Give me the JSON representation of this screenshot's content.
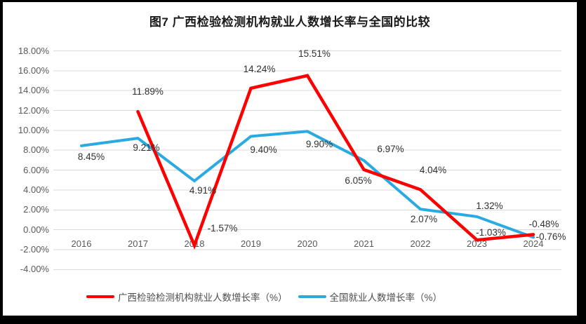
{
  "frame": {
    "border_color": "#000000",
    "background": "#ffffff"
  },
  "chart_data": {
    "type": "line",
    "title": "图7 广西检验检测机构就业人数增长率与全国的比较",
    "categories": [
      "2016",
      "2017",
      "2018",
      "2019",
      "2020",
      "2021",
      "2022",
      "2023",
      "2024"
    ],
    "y_axis": {
      "ticks": [
        "18.00%",
        "16.00%",
        "14.00%",
        "12.00%",
        "10.00%",
        "8.00%",
        "6.00%",
        "4.00%",
        "2.00%",
        "0.00%",
        "-2.00%",
        "-4.00%"
      ],
      "tick_values": [
        18,
        16,
        14,
        12,
        10,
        8,
        6,
        4,
        2,
        0,
        -2,
        -4
      ],
      "min": -4,
      "max": 18
    },
    "grid": true,
    "gridline_color": "#d9d9d9",
    "legend_position": "bottom",
    "series": [
      {
        "id": "guangxi",
        "name": "广西检验检测机构就业人数增长率（%）",
        "color": "#ff0000",
        "stroke_width": 4.5,
        "values": [
          null,
          11.89,
          -1.57,
          14.24,
          15.51,
          6.05,
          4.04,
          -1.03,
          -0.48
        ],
        "labels": [
          null,
          "11.89%",
          "-1.57%",
          "14.24%",
          "15.51%",
          "6.05%",
          "4.04%",
          "-1.03%",
          "-0.48%"
        ],
        "label_offsets": [
          null,
          [
            14,
            -28
          ],
          [
            40,
            -24
          ],
          [
            12,
            -27
          ],
          [
            10,
            -31
          ],
          [
            -8,
            16
          ],
          [
            18,
            -27
          ],
          [
            20,
            -10
          ],
          [
            15,
            -14
          ]
        ]
      },
      {
        "id": "national",
        "name": "全国就业人数增长率（%）",
        "color": "#29abe2",
        "stroke_width": 4,
        "values": [
          8.45,
          9.21,
          4.91,
          9.4,
          9.9,
          6.97,
          2.07,
          1.32,
          -0.76
        ],
        "labels": [
          "8.45%",
          "9.21%",
          "4.91%",
          "9.40%",
          "9.90%",
          "6.97%",
          "2.07%",
          "1.32%",
          "-0.76%"
        ],
        "label_offsets": [
          [
            14,
            16
          ],
          [
            12,
            14
          ],
          [
            12,
            14
          ],
          [
            18,
            20
          ],
          [
            17,
            19
          ],
          [
            38,
            -16
          ],
          [
            5,
            15
          ],
          [
            18,
            -15
          ],
          [
            25,
            0
          ]
        ]
      }
    ]
  }
}
